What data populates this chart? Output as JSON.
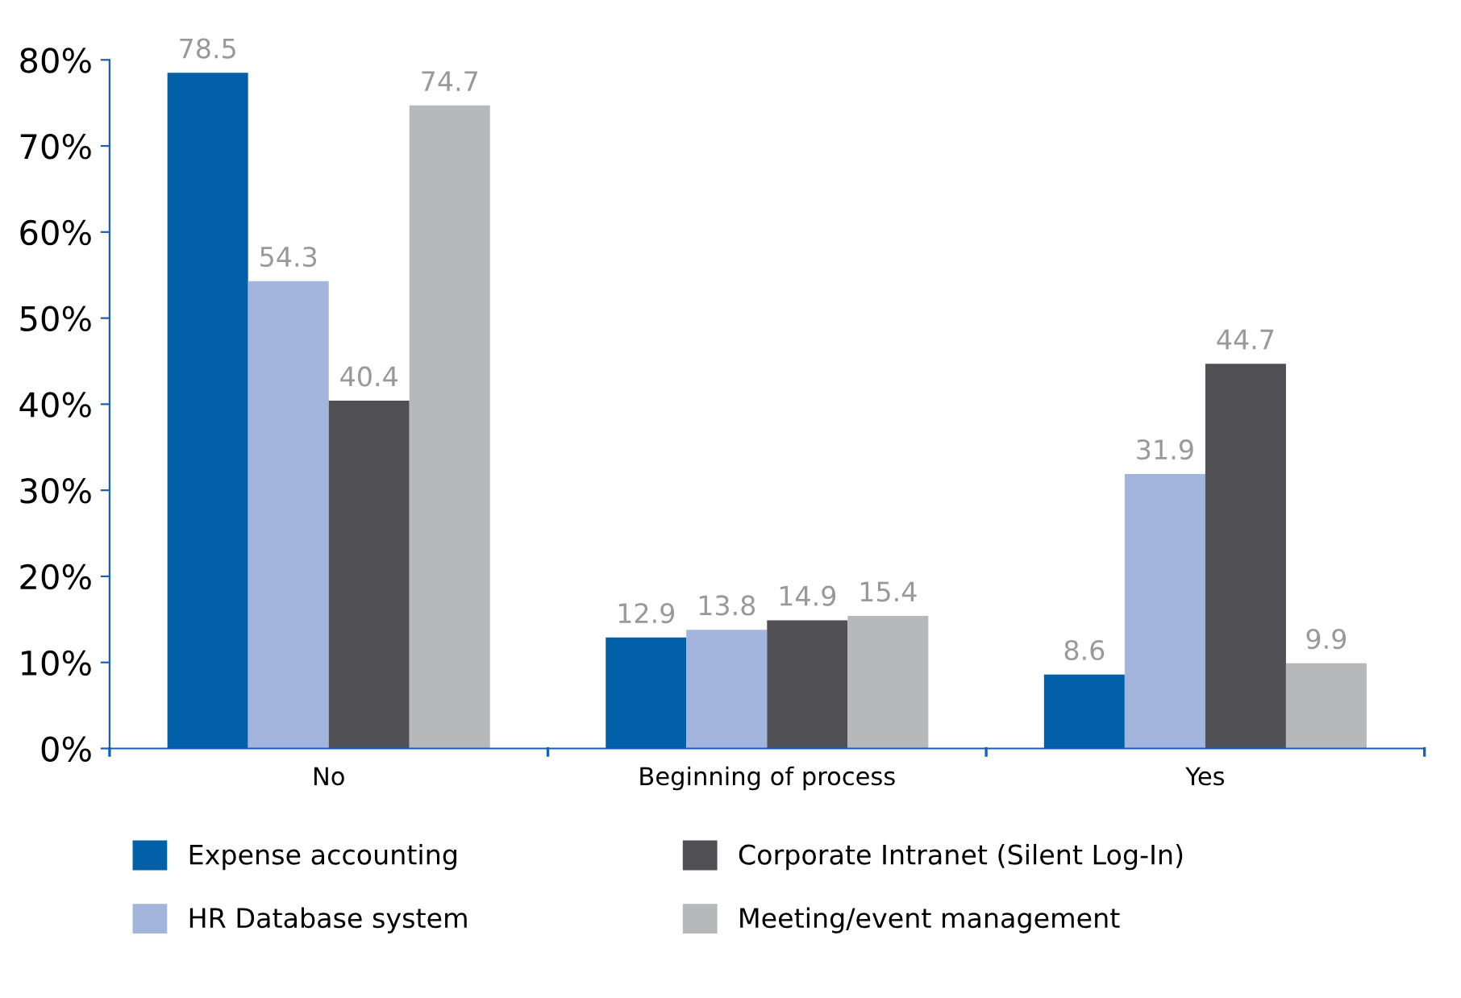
{
  "chart_data": {
    "type": "bar",
    "categories": [
      "No",
      "Beginning of process",
      "Yes"
    ],
    "series": [
      {
        "name": "Expense accounting",
        "color": "#0260a9",
        "values": [
          78.5,
          12.9,
          8.6
        ]
      },
      {
        "name": "HR Database system",
        "color": "#a3b5dc",
        "values": [
          54.3,
          13.8,
          31.9
        ]
      },
      {
        "name": "Corporate Intranet (Silent Log-In)",
        "color": "#505055",
        "values": [
          40.4,
          14.9,
          44.7
        ]
      },
      {
        "name": "Meeting/event management",
        "color": "#b7b8ba",
        "values": [
          74.7,
          15.4,
          9.9
        ]
      }
    ],
    "ylim": [
      0,
      80
    ],
    "yticks": [
      {
        "value": 0,
        "label": "0%"
      },
      {
        "value": 10,
        "label": "10%"
      },
      {
        "value": 20,
        "label": "20%"
      },
      {
        "value": 30,
        "label": "30%"
      },
      {
        "value": 40,
        "label": "40%"
      },
      {
        "value": 50,
        "label": "50%"
      },
      {
        "value": 60,
        "label": "60%"
      },
      {
        "value": 70,
        "label": "70%"
      },
      {
        "value": 80,
        "label": "80%"
      }
    ],
    "data_labels": true,
    "grid": false,
    "legend": "bottom"
  }
}
